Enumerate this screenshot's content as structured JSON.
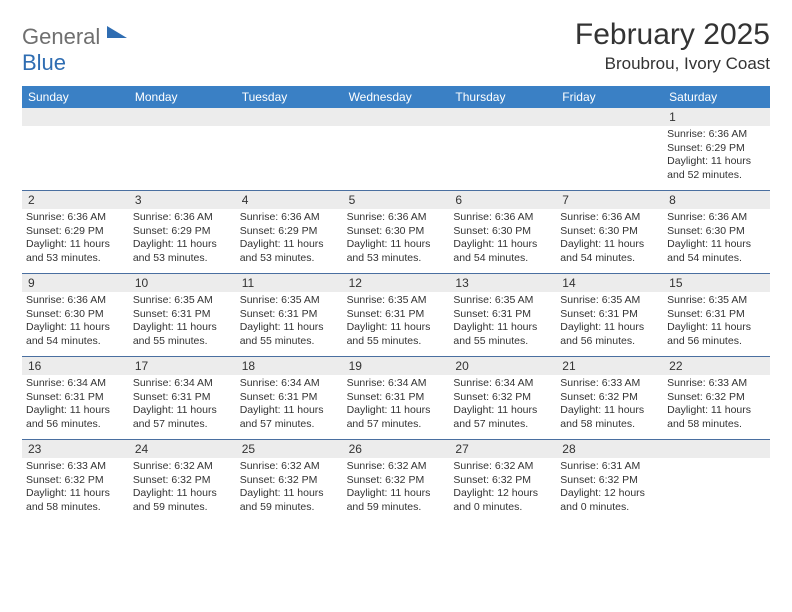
{
  "logo": {
    "text1": "General",
    "text2": "Blue"
  },
  "title": "February 2025",
  "location": "Broubrou, Ivory Coast",
  "colors": {
    "header_bg": "#3a80c5",
    "header_text": "#ffffff",
    "daynum_bg": "#ececec",
    "border": "#4a6fa0",
    "logo_gray": "#6f6f6f",
    "logo_blue": "#2f6db2",
    "text": "#333333"
  },
  "dow": [
    "Sunday",
    "Monday",
    "Tuesday",
    "Wednesday",
    "Thursday",
    "Friday",
    "Saturday"
  ],
  "weeks": [
    [
      {
        "n": "",
        "sr": "",
        "ss": "",
        "dl": ""
      },
      {
        "n": "",
        "sr": "",
        "ss": "",
        "dl": ""
      },
      {
        "n": "",
        "sr": "",
        "ss": "",
        "dl": ""
      },
      {
        "n": "",
        "sr": "",
        "ss": "",
        "dl": ""
      },
      {
        "n": "",
        "sr": "",
        "ss": "",
        "dl": ""
      },
      {
        "n": "",
        "sr": "",
        "ss": "",
        "dl": ""
      },
      {
        "n": "1",
        "sr": "Sunrise: 6:36 AM",
        "ss": "Sunset: 6:29 PM",
        "dl": "Daylight: 11 hours and 52 minutes."
      }
    ],
    [
      {
        "n": "2",
        "sr": "Sunrise: 6:36 AM",
        "ss": "Sunset: 6:29 PM",
        "dl": "Daylight: 11 hours and 53 minutes."
      },
      {
        "n": "3",
        "sr": "Sunrise: 6:36 AM",
        "ss": "Sunset: 6:29 PM",
        "dl": "Daylight: 11 hours and 53 minutes."
      },
      {
        "n": "4",
        "sr": "Sunrise: 6:36 AM",
        "ss": "Sunset: 6:29 PM",
        "dl": "Daylight: 11 hours and 53 minutes."
      },
      {
        "n": "5",
        "sr": "Sunrise: 6:36 AM",
        "ss": "Sunset: 6:30 PM",
        "dl": "Daylight: 11 hours and 53 minutes."
      },
      {
        "n": "6",
        "sr": "Sunrise: 6:36 AM",
        "ss": "Sunset: 6:30 PM",
        "dl": "Daylight: 11 hours and 54 minutes."
      },
      {
        "n": "7",
        "sr": "Sunrise: 6:36 AM",
        "ss": "Sunset: 6:30 PM",
        "dl": "Daylight: 11 hours and 54 minutes."
      },
      {
        "n": "8",
        "sr": "Sunrise: 6:36 AM",
        "ss": "Sunset: 6:30 PM",
        "dl": "Daylight: 11 hours and 54 minutes."
      }
    ],
    [
      {
        "n": "9",
        "sr": "Sunrise: 6:36 AM",
        "ss": "Sunset: 6:30 PM",
        "dl": "Daylight: 11 hours and 54 minutes."
      },
      {
        "n": "10",
        "sr": "Sunrise: 6:35 AM",
        "ss": "Sunset: 6:31 PM",
        "dl": "Daylight: 11 hours and 55 minutes."
      },
      {
        "n": "11",
        "sr": "Sunrise: 6:35 AM",
        "ss": "Sunset: 6:31 PM",
        "dl": "Daylight: 11 hours and 55 minutes."
      },
      {
        "n": "12",
        "sr": "Sunrise: 6:35 AM",
        "ss": "Sunset: 6:31 PM",
        "dl": "Daylight: 11 hours and 55 minutes."
      },
      {
        "n": "13",
        "sr": "Sunrise: 6:35 AM",
        "ss": "Sunset: 6:31 PM",
        "dl": "Daylight: 11 hours and 55 minutes."
      },
      {
        "n": "14",
        "sr": "Sunrise: 6:35 AM",
        "ss": "Sunset: 6:31 PM",
        "dl": "Daylight: 11 hours and 56 minutes."
      },
      {
        "n": "15",
        "sr": "Sunrise: 6:35 AM",
        "ss": "Sunset: 6:31 PM",
        "dl": "Daylight: 11 hours and 56 minutes."
      }
    ],
    [
      {
        "n": "16",
        "sr": "Sunrise: 6:34 AM",
        "ss": "Sunset: 6:31 PM",
        "dl": "Daylight: 11 hours and 56 minutes."
      },
      {
        "n": "17",
        "sr": "Sunrise: 6:34 AM",
        "ss": "Sunset: 6:31 PM",
        "dl": "Daylight: 11 hours and 57 minutes."
      },
      {
        "n": "18",
        "sr": "Sunrise: 6:34 AM",
        "ss": "Sunset: 6:31 PM",
        "dl": "Daylight: 11 hours and 57 minutes."
      },
      {
        "n": "19",
        "sr": "Sunrise: 6:34 AM",
        "ss": "Sunset: 6:31 PM",
        "dl": "Daylight: 11 hours and 57 minutes."
      },
      {
        "n": "20",
        "sr": "Sunrise: 6:34 AM",
        "ss": "Sunset: 6:32 PM",
        "dl": "Daylight: 11 hours and 57 minutes."
      },
      {
        "n": "21",
        "sr": "Sunrise: 6:33 AM",
        "ss": "Sunset: 6:32 PM",
        "dl": "Daylight: 11 hours and 58 minutes."
      },
      {
        "n": "22",
        "sr": "Sunrise: 6:33 AM",
        "ss": "Sunset: 6:32 PM",
        "dl": "Daylight: 11 hours and 58 minutes."
      }
    ],
    [
      {
        "n": "23",
        "sr": "Sunrise: 6:33 AM",
        "ss": "Sunset: 6:32 PM",
        "dl": "Daylight: 11 hours and 58 minutes."
      },
      {
        "n": "24",
        "sr": "Sunrise: 6:32 AM",
        "ss": "Sunset: 6:32 PM",
        "dl": "Daylight: 11 hours and 59 minutes."
      },
      {
        "n": "25",
        "sr": "Sunrise: 6:32 AM",
        "ss": "Sunset: 6:32 PM",
        "dl": "Daylight: 11 hours and 59 minutes."
      },
      {
        "n": "26",
        "sr": "Sunrise: 6:32 AM",
        "ss": "Sunset: 6:32 PM",
        "dl": "Daylight: 11 hours and 59 minutes."
      },
      {
        "n": "27",
        "sr": "Sunrise: 6:32 AM",
        "ss": "Sunset: 6:32 PM",
        "dl": "Daylight: 12 hours and 0 minutes."
      },
      {
        "n": "28",
        "sr": "Sunrise: 6:31 AM",
        "ss": "Sunset: 6:32 PM",
        "dl": "Daylight: 12 hours and 0 minutes."
      },
      {
        "n": "",
        "sr": "",
        "ss": "",
        "dl": ""
      }
    ]
  ]
}
